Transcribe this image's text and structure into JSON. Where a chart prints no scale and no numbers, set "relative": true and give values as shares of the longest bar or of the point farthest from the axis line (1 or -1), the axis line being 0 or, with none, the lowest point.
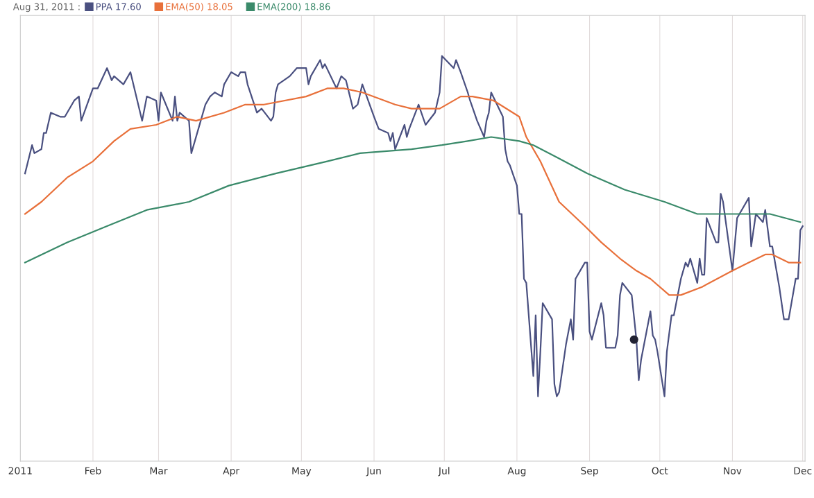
{
  "chart_data": {
    "type": "line",
    "title": "Aug 31, 2011 :",
    "relative": true,
    "grid": "x",
    "legend": "top left",
    "marker": "none",
    "line_style": "solid",
    "xlim": [
      "2011-01-01",
      "2011-12-02"
    ],
    "xticks": [
      {
        "value": "2011-01-01",
        "label": "2011"
      },
      {
        "value": "2011-02-01",
        "label": "Feb"
      },
      {
        "value": "2011-03-01",
        "label": "Mar"
      },
      {
        "value": "2011-04-01",
        "label": "Apr"
      },
      {
        "value": "2011-05-01",
        "label": "May"
      },
      {
        "value": "2011-06-01",
        "label": "Jun"
      },
      {
        "value": "2011-07-01",
        "label": "Jul"
      },
      {
        "value": "2011-08-01",
        "label": "Aug"
      },
      {
        "value": "2011-09-01",
        "label": "Sep"
      },
      {
        "value": "2011-10-01",
        "label": "Oct"
      },
      {
        "value": "2011-11-01",
        "label": "Nov"
      },
      {
        "value": "2011-12-01",
        "label": "Dec"
      }
    ],
    "series": [
      {
        "name": "PPA 17.60",
        "color": "#4a5080",
        "x": [
          "2011-01-03",
          "2011-01-06",
          "2011-01-07",
          "2011-01-10",
          "2011-01-11",
          "2011-01-12",
          "2011-01-14",
          "2011-01-18",
          "2011-01-20",
          "2011-01-24",
          "2011-01-26",
          "2011-01-27",
          "2011-02-01",
          "2011-02-03",
          "2011-02-07",
          "2011-02-09",
          "2011-02-10",
          "2011-02-14",
          "2011-02-17",
          "2011-02-22",
          "2011-02-24",
          "2011-02-28",
          "2011-03-01",
          "2011-03-02",
          "2011-03-07",
          "2011-03-08",
          "2011-03-09",
          "2011-03-10",
          "2011-03-14",
          "2011-03-15",
          "2011-03-18",
          "2011-03-21",
          "2011-03-23",
          "2011-03-25",
          "2011-03-28",
          "2011-03-29",
          "2011-04-01",
          "2011-04-04",
          "2011-04-05",
          "2011-04-07",
          "2011-04-08",
          "2011-04-12",
          "2011-04-14",
          "2011-04-18",
          "2011-04-19",
          "2011-04-20",
          "2011-04-21",
          "2011-04-26",
          "2011-04-29",
          "2011-05-03",
          "2011-05-04",
          "2011-05-05",
          "2011-05-09",
          "2011-05-10",
          "2011-05-11",
          "2011-05-16",
          "2011-05-18",
          "2011-05-20",
          "2011-05-23",
          "2011-05-25",
          "2011-05-27",
          "2011-06-01",
          "2011-06-03",
          "2011-06-07",
          "2011-06-08",
          "2011-06-09",
          "2011-06-10",
          "2011-06-14",
          "2011-06-15",
          "2011-06-16",
          "2011-06-20",
          "2011-06-23",
          "2011-06-27",
          "2011-06-29",
          "2011-06-30",
          "2011-07-05",
          "2011-07-06",
          "2011-07-08",
          "2011-07-11",
          "2011-07-12",
          "2011-07-15",
          "2011-07-18",
          "2011-07-19",
          "2011-07-20",
          "2011-07-21",
          "2011-07-26",
          "2011-07-27",
          "2011-07-28",
          "2011-07-29",
          "2011-08-01",
          "2011-08-02",
          "2011-08-03",
          "2011-08-04",
          "2011-08-05",
          "2011-08-08",
          "2011-08-09",
          "2011-08-10",
          "2011-08-11",
          "2011-08-12",
          "2011-08-16",
          "2011-08-17",
          "2011-08-18",
          "2011-08-19",
          "2011-08-22",
          "2011-08-24",
          "2011-08-25",
          "2011-08-26",
          "2011-08-30",
          "2011-08-31",
          "2011-09-01",
          "2011-09-02",
          "2011-09-06",
          "2011-09-07",
          "2011-09-08",
          "2011-09-12",
          "2011-09-13",
          "2011-09-14",
          "2011-09-15",
          "2011-09-19",
          "2011-09-21",
          "2011-09-22",
          "2011-09-23",
          "2011-09-27",
          "2011-09-28",
          "2011-09-29",
          "2011-09-30",
          "2011-10-03",
          "2011-10-04",
          "2011-10-06",
          "2011-10-07",
          "2011-10-10",
          "2011-10-12",
          "2011-10-13",
          "2011-10-14",
          "2011-10-17",
          "2011-10-18",
          "2011-10-19",
          "2011-10-20",
          "2011-10-21",
          "2011-10-25",
          "2011-10-26",
          "2011-10-27",
          "2011-10-28",
          "2011-11-01",
          "2011-11-03",
          "2011-11-04",
          "2011-11-08",
          "2011-11-09",
          "2011-11-11",
          "2011-11-14",
          "2011-11-15",
          "2011-11-17",
          "2011-11-18",
          "2011-11-21",
          "2011-11-23",
          "2011-11-25",
          "2011-11-28",
          "2011-11-29",
          "2011-11-30",
          "2011-12-01"
        ],
        "values": [
          0.71,
          0.78,
          0.76,
          0.77,
          0.81,
          0.81,
          0.86,
          0.85,
          0.85,
          0.89,
          0.9,
          0.84,
          0.92,
          0.92,
          0.97,
          0.94,
          0.95,
          0.93,
          0.96,
          0.84,
          0.9,
          0.89,
          0.84,
          0.91,
          0.84,
          0.9,
          0.84,
          0.86,
          0.84,
          0.76,
          0.82,
          0.88,
          0.9,
          0.91,
          0.9,
          0.93,
          0.96,
          0.95,
          0.96,
          0.96,
          0.93,
          0.86,
          0.87,
          0.84,
          0.85,
          0.91,
          0.93,
          0.95,
          0.97,
          0.97,
          0.93,
          0.95,
          0.99,
          0.97,
          0.98,
          0.92,
          0.95,
          0.94,
          0.87,
          0.88,
          0.93,
          0.85,
          0.82,
          0.81,
          0.79,
          0.81,
          0.77,
          0.83,
          0.8,
          0.82,
          0.88,
          0.83,
          0.86,
          0.91,
          1.0,
          0.97,
          0.99,
          0.96,
          0.91,
          0.89,
          0.84,
          0.8,
          0.84,
          0.86,
          0.91,
          0.85,
          0.77,
          0.74,
          0.73,
          0.68,
          0.61,
          0.61,
          0.45,
          0.44,
          0.21,
          0.36,
          0.16,
          0.27,
          0.39,
          0.35,
          0.19,
          0.16,
          0.17,
          0.29,
          0.35,
          0.3,
          0.45,
          0.49,
          0.49,
          0.32,
          0.3,
          0.39,
          0.36,
          0.28,
          0.28,
          0.31,
          0.41,
          0.44,
          0.41,
          0.3,
          0.2,
          0.25,
          0.37,
          0.31,
          0.3,
          0.27,
          0.16,
          0.27,
          0.36,
          0.36,
          0.45,
          0.49,
          0.48,
          0.5,
          0.44,
          0.5,
          0.46,
          0.46,
          0.6,
          0.54,
          0.54,
          0.66,
          0.64,
          0.47,
          0.6,
          0.61,
          0.65,
          0.53,
          0.61,
          0.59,
          0.62,
          0.53,
          0.53,
          0.43,
          0.35,
          0.35,
          0.45,
          0.45,
          0.57,
          0.58
        ]
      },
      {
        "name": "EMA(50) 18.05",
        "color": "#e8703a",
        "x": [
          "2011-01-03",
          "2011-01-10",
          "2011-01-21",
          "2011-02-01",
          "2011-02-10",
          "2011-02-17",
          "2011-02-28",
          "2011-03-09",
          "2011-03-17",
          "2011-03-29",
          "2011-04-07",
          "2011-04-15",
          "2011-05-03",
          "2011-05-12",
          "2011-05-19",
          "2011-05-27",
          "2011-06-10",
          "2011-06-17",
          "2011-06-29",
          "2011-07-08",
          "2011-07-13",
          "2011-07-22",
          "2011-08-02",
          "2011-08-05",
          "2011-08-11",
          "2011-08-19",
          "2011-08-30",
          "2011-09-06",
          "2011-09-14",
          "2011-09-21",
          "2011-09-27",
          "2011-10-05",
          "2011-10-10",
          "2011-10-19",
          "2011-11-01",
          "2011-11-08",
          "2011-11-15",
          "2011-11-18",
          "2011-11-25",
          "2011-11-30"
        ],
        "values": [
          0.61,
          0.64,
          0.7,
          0.74,
          0.79,
          0.82,
          0.83,
          0.85,
          0.84,
          0.86,
          0.88,
          0.88,
          0.9,
          0.92,
          0.92,
          0.91,
          0.88,
          0.87,
          0.87,
          0.9,
          0.9,
          0.89,
          0.85,
          0.8,
          0.74,
          0.64,
          0.58,
          0.54,
          0.5,
          0.47,
          0.45,
          0.41,
          0.41,
          0.43,
          0.47,
          0.49,
          0.51,
          0.51,
          0.49,
          0.49
        ]
      },
      {
        "name": "EMA(200) 18.86",
        "color": "#3a8a6a",
        "x": [
          "2011-01-03",
          "2011-01-21",
          "2011-02-07",
          "2011-02-24",
          "2011-03-14",
          "2011-03-31",
          "2011-04-20",
          "2011-05-12",
          "2011-05-26",
          "2011-06-17",
          "2011-06-30",
          "2011-07-11",
          "2011-07-21",
          "2011-08-02",
          "2011-08-08",
          "2011-08-18",
          "2011-08-31",
          "2011-09-16",
          "2011-10-03",
          "2011-10-17",
          "2011-11-02",
          "2011-11-17",
          "2011-11-30"
        ],
        "values": [
          0.49,
          0.54,
          0.58,
          0.62,
          0.64,
          0.68,
          0.71,
          0.74,
          0.76,
          0.77,
          0.78,
          0.79,
          0.8,
          0.79,
          0.78,
          0.75,
          0.71,
          0.67,
          0.64,
          0.61,
          0.61,
          0.61,
          0.59
        ]
      },
      {
        "type": "scatter",
        "color": "#222233",
        "marker": "circle",
        "x": [
          "2011-09-20"
        ],
        "values": [
          0.3
        ]
      }
    ]
  }
}
